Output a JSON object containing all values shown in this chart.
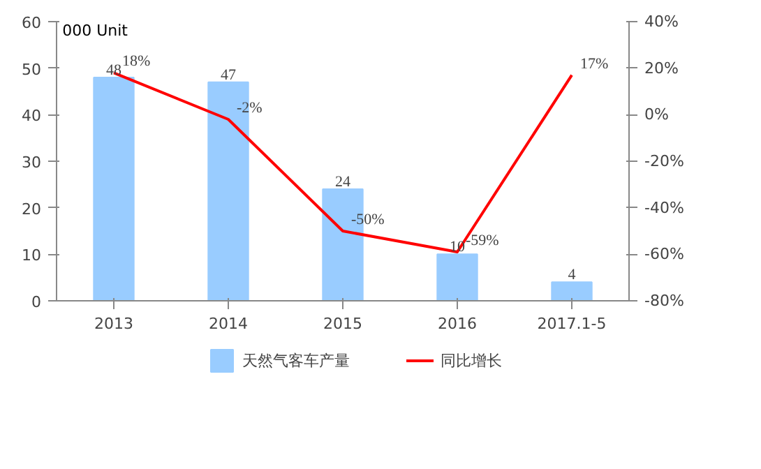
{
  "chart_data": {
    "type": "bar",
    "ylabel": "000 Unit",
    "categories": [
      "2013",
      "2014",
      "2015",
      "2016",
      "2017.1-5"
    ],
    "series": [
      {
        "name": "天然气客车产量",
        "color": "#99ccff",
        "values": [
          48,
          47,
          24,
          10,
          4
        ],
        "value_labels": [
          "48",
          "47",
          "24",
          "10",
          "4"
        ]
      },
      {
        "name": "同比增长",
        "type": "line",
        "axis": "y2",
        "color": "#ff0000",
        "values": [
          18,
          -2,
          -50,
          -59,
          17
        ],
        "value_labels": [
          "18%",
          "-2%",
          "-50%",
          "-59%",
          "17%"
        ]
      }
    ],
    "ylim": [
      0,
      60
    ],
    "yticks": [
      0,
      10,
      20,
      30,
      40,
      50,
      60
    ],
    "y2lim": [
      -80,
      40
    ],
    "y2ticks": [
      {
        "value": -80,
        "label": "-80%"
      },
      {
        "value": -60,
        "label": "-60%"
      },
      {
        "value": -40,
        "label": "-40%"
      },
      {
        "value": -20,
        "label": "-20%"
      },
      {
        "value": 0,
        "label": "0%"
      },
      {
        "value": 20,
        "label": "20%"
      },
      {
        "value": 40,
        "label": "40%"
      }
    ],
    "grid": false,
    "legend": "bottom",
    "marker": "none"
  }
}
